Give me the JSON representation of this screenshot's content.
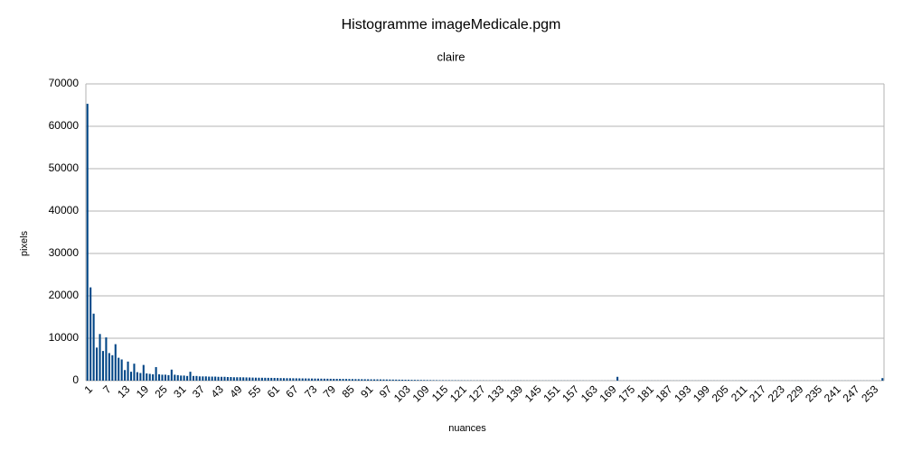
{
  "chart_data": {
    "type": "bar",
    "title": "Histogramme imageMedicale.pgm",
    "subtitle": "claire",
    "x_label": "nuances",
    "y_label": "pixels",
    "color": "#004586",
    "grid": true,
    "ylim": [
      0,
      70000
    ],
    "yticks": [
      0,
      10000,
      20000,
      30000,
      40000,
      50000,
      60000,
      70000
    ],
    "categories": [
      1,
      null,
      null,
      null,
      null,
      null,
      7,
      null,
      null,
      null,
      null,
      null,
      13,
      null,
      null,
      null,
      null,
      null,
      19,
      null,
      null,
      null,
      null,
      null,
      25,
      null,
      null,
      null,
      null,
      null,
      31,
      null,
      null,
      null,
      null,
      null,
      37,
      null,
      null,
      null,
      null,
      null,
      43,
      null,
      null,
      null,
      null,
      null,
      49,
      null,
      null,
      null,
      null,
      null,
      55,
      null,
      null,
      null,
      null,
      null,
      61,
      null,
      null,
      null,
      null,
      null,
      67,
      null,
      null,
      null,
      null,
      null,
      73,
      null,
      null,
      null,
      null,
      null,
      79,
      null,
      null,
      null,
      null,
      null,
      85,
      null,
      null,
      null,
      null,
      null,
      91,
      null,
      null,
      null,
      null,
      null,
      97,
      null,
      null,
      null,
      null,
      null,
      103,
      null,
      null,
      null,
      null,
      null,
      109,
      null,
      null,
      null,
      null,
      null,
      115,
      null,
      null,
      null,
      null,
      null,
      121,
      null,
      null,
      null,
      null,
      null,
      127,
      null,
      null,
      null,
      null,
      null,
      133,
      null,
      null,
      null,
      null,
      null,
      139,
      null,
      null,
      null,
      null,
      null,
      145,
      null,
      null,
      null,
      null,
      null,
      151,
      null,
      null,
      null,
      null,
      null,
      157,
      null,
      null,
      null,
      null,
      null,
      163,
      null,
      null,
      null,
      null,
      null,
      169,
      null,
      null,
      null,
      null,
      null,
      175,
      null,
      null,
      null,
      null,
      null,
      181,
      null,
      null,
      null,
      null,
      null,
      187,
      null,
      null,
      null,
      null,
      null,
      193,
      null,
      null,
      null,
      null,
      null,
      199,
      null,
      null,
      null,
      null,
      null,
      205,
      null,
      null,
      null,
      null,
      null,
      211,
      null,
      null,
      null,
      null,
      null,
      217,
      null,
      null,
      null,
      null,
      null,
      223,
      null,
      null,
      null,
      null,
      null,
      229,
      null,
      null,
      null,
      null,
      null,
      235,
      null,
      null,
      null,
      null,
      null,
      241,
      null,
      null,
      null,
      null,
      null,
      247,
      null,
      null,
      null,
      null,
      null,
      253,
      null,
      null,
      null
    ],
    "values": [
      65300,
      22000,
      15800,
      7800,
      11000,
      7000,
      10200,
      6500,
      6000,
      8600,
      5400,
      5000,
      2500,
      4500,
      2100,
      4000,
      2000,
      1800,
      3700,
      1700,
      1600,
      1500,
      3200,
      1500,
      1400,
      1400,
      1300,
      2600,
      1400,
      1300,
      1200,
      1200,
      1100,
      2100,
      1100,
      1100,
      1000,
      1000,
      1000,
      950,
      950,
      950,
      900,
      900,
      900,
      850,
      850,
      800,
      800,
      800,
      780,
      760,
      740,
      720,
      700,
      690,
      680,
      670,
      660,
      650,
      640,
      620,
      600,
      590,
      580,
      570,
      560,
      550,
      540,
      530,
      520,
      510,
      500,
      490,
      480,
      470,
      460,
      450,
      440,
      430,
      420,
      410,
      400,
      390,
      380,
      370,
      360,
      350,
      340,
      330,
      320,
      310,
      300,
      300,
      290,
      280,
      270,
      260,
      250,
      240,
      230,
      220,
      210,
      200,
      190,
      180,
      170,
      160,
      150,
      140,
      130,
      120,
      110,
      100,
      100,
      90,
      90,
      80,
      80,
      70,
      70,
      60,
      60,
      60,
      50,
      50,
      50,
      50,
      40,
      40,
      40,
      40,
      40,
      40,
      40,
      40,
      40,
      40,
      40,
      40,
      30,
      30,
      30,
      30,
      30,
      30,
      30,
      30,
      30,
      30,
      30,
      30,
      30,
      30,
      30,
      30,
      30,
      30,
      30,
      30,
      20,
      20,
      20,
      20,
      20,
      20,
      20,
      20,
      20,
      20,
      900,
      20,
      20,
      20,
      20,
      20,
      20,
      20,
      20,
      20,
      20,
      20,
      20,
      20,
      20,
      20,
      20,
      20,
      20,
      20,
      20,
      20,
      20,
      20,
      20,
      20,
      20,
      20,
      20,
      20,
      20,
      20,
      20,
      20,
      20,
      20,
      20,
      20,
      20,
      20,
      20,
      20,
      20,
      20,
      20,
      20,
      20,
      20,
      20,
      20,
      20,
      20,
      20,
      20,
      20,
      20,
      20,
      20,
      20,
      20,
      20,
      20,
      20,
      20,
      20,
      20,
      20,
      20,
      20,
      20,
      20,
      20,
      20,
      20,
      20,
      20,
      20,
      20,
      20,
      20,
      20,
      20,
      20,
      20,
      20,
      600
    ]
  }
}
